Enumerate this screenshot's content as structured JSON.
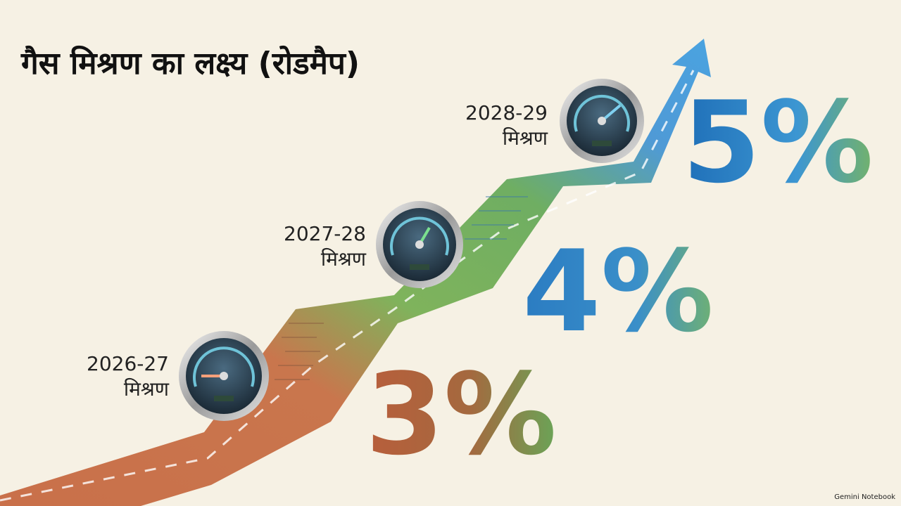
{
  "header": {
    "title": "गैस मिश्रण का लक्ष्य (रोडमैप)"
  },
  "milestones": [
    {
      "year": "2026-27",
      "label": "मिश्रण",
      "value": "3%"
    },
    {
      "year": "2027-28",
      "label": "मिश्रण",
      "value": "4%"
    },
    {
      "year": "2028-29",
      "label": "मिश्रण",
      "value": "5%"
    }
  ],
  "footer": {
    "watermark": "Gemini Notebook"
  }
}
